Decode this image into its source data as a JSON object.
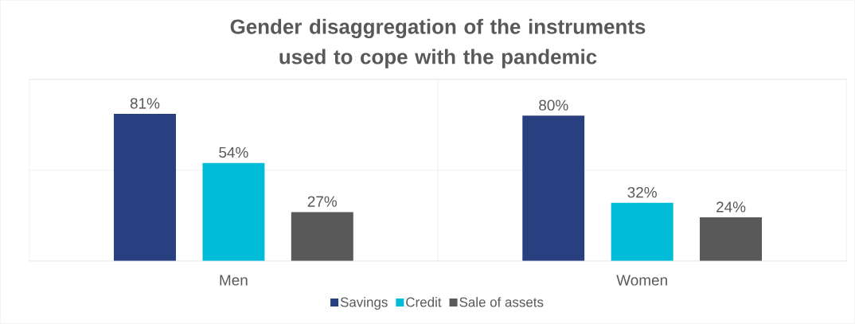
{
  "chart_data": {
    "type": "bar",
    "title": "Gender disaggregation of the instruments used to cope with the pandemic",
    "categories": [
      "Men",
      "Women"
    ],
    "series": [
      {
        "name": "Savings",
        "color": "#283f80",
        "values": [
          81,
          80
        ],
        "value_labels": [
          "81%",
          "80%"
        ]
      },
      {
        "name": "Credit",
        "color": "#00bcd9",
        "values": [
          54,
          32
        ],
        "value_labels": [
          "54%",
          "32%"
        ]
      },
      {
        "name": "Sale of assets",
        "color": "#595959",
        "values": [
          27,
          24
        ],
        "value_labels": [
          "27%",
          "24%"
        ]
      }
    ],
    "ylim": [
      0,
      100
    ],
    "yticks": [
      0,
      50,
      100
    ],
    "tick_labels": "x",
    "grid": true,
    "legend": "bottom"
  }
}
